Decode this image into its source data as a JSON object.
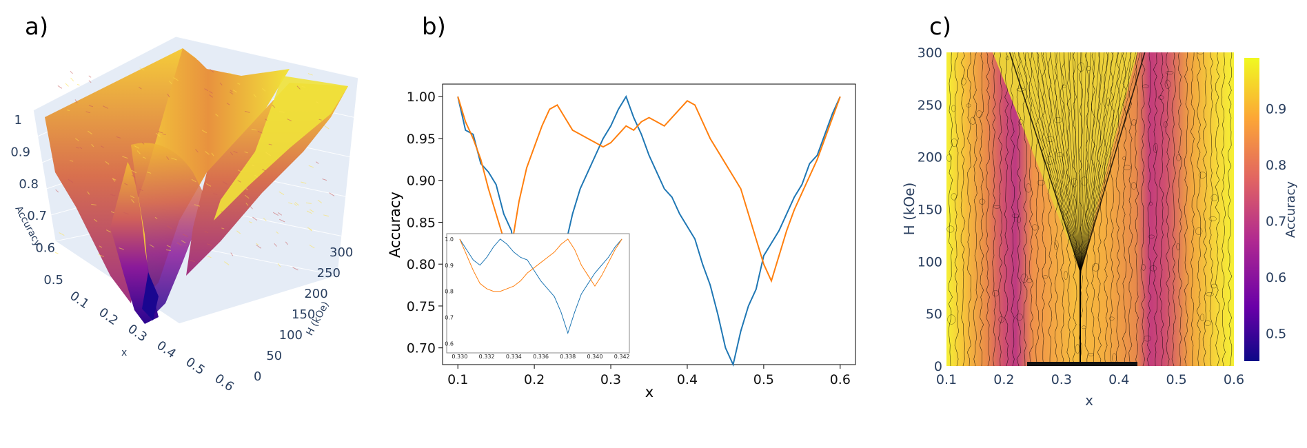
{
  "panels": {
    "a": "a)",
    "b": "b)",
    "c": "c)"
  },
  "chart_data": [
    {
      "panel": "a)",
      "type": "surface",
      "xlabel": "x",
      "ylabel": "H (kOe)",
      "zlabel": "Accuracy",
      "x_ticks": [
        "0.1",
        "0.2",
        "0.3",
        "0.4",
        "0.5",
        "0.6"
      ],
      "y_ticks": [
        "0",
        "50",
        "100",
        "150",
        "200",
        "250",
        "300"
      ],
      "z_ticks": [
        "0.5",
        "0.6",
        "0.7",
        "0.8",
        "0.9",
        "1"
      ],
      "xlim": [
        0.1,
        0.6
      ],
      "ylim": [
        0,
        300
      ],
      "zlim": [
        0.45,
        1.0
      ],
      "colorscale": [
        "#0d0887",
        "#7e03a8",
        "#cc4778",
        "#f89540",
        "#f0f921"
      ],
      "minimum": {
        "x": 0.33,
        "H": 0,
        "accuracy": 0.46
      }
    },
    {
      "panel": "b)",
      "type": "line",
      "xlabel": "x",
      "ylabel": "Accuracy",
      "xlim": [
        0.08,
        0.62
      ],
      "ylim": [
        0.68,
        1.015
      ],
      "x_ticks": [
        "0.1",
        "0.2",
        "0.3",
        "0.4",
        "0.5",
        "0.6"
      ],
      "y_ticks": [
        "0.70",
        "0.75",
        "0.80",
        "0.85",
        "0.90",
        "0.95",
        "1.00"
      ],
      "grid": false,
      "series": [
        {
          "color": "#1f77b4",
          "x": [
            0.1,
            0.11,
            0.12,
            0.13,
            0.14,
            0.15,
            0.16,
            0.17,
            0.18,
            0.19,
            0.2,
            0.21,
            0.22,
            0.23,
            0.24,
            0.25,
            0.26,
            0.27,
            0.28,
            0.29,
            0.3,
            0.31,
            0.32,
            0.33,
            0.34,
            0.35,
            0.36,
            0.37,
            0.38,
            0.39,
            0.4,
            0.41,
            0.42,
            0.43,
            0.44,
            0.45,
            0.46,
            0.47,
            0.48,
            0.49,
            0.5,
            0.51,
            0.52,
            0.53,
            0.54,
            0.55,
            0.56,
            0.57,
            0.58,
            0.59,
            0.6
          ],
          "y": [
            1.0,
            0.96,
            0.955,
            0.92,
            0.91,
            0.895,
            0.86,
            0.84,
            0.78,
            0.74,
            0.72,
            0.74,
            0.76,
            0.79,
            0.82,
            0.86,
            0.89,
            0.91,
            0.93,
            0.95,
            0.965,
            0.985,
            1.0,
            0.975,
            0.955,
            0.93,
            0.91,
            0.89,
            0.88,
            0.86,
            0.845,
            0.83,
            0.8,
            0.775,
            0.74,
            0.7,
            0.68,
            0.72,
            0.75,
            0.77,
            0.81,
            0.825,
            0.84,
            0.86,
            0.88,
            0.895,
            0.92,
            0.93,
            0.955,
            0.98,
            1.0
          ]
        },
        {
          "color": "#ff7f0e",
          "x": [
            0.1,
            0.11,
            0.12,
            0.13,
            0.14,
            0.15,
            0.16,
            0.17,
            0.18,
            0.19,
            0.2,
            0.21,
            0.22,
            0.23,
            0.24,
            0.25,
            0.26,
            0.27,
            0.28,
            0.29,
            0.3,
            0.31,
            0.32,
            0.33,
            0.34,
            0.35,
            0.36,
            0.37,
            0.38,
            0.39,
            0.4,
            0.41,
            0.42,
            0.43,
            0.44,
            0.45,
            0.46,
            0.47,
            0.48,
            0.49,
            0.5,
            0.51,
            0.52,
            0.53,
            0.54,
            0.55,
            0.56,
            0.57,
            0.58,
            0.59,
            0.6
          ],
          "y": [
            1.0,
            0.97,
            0.95,
            0.925,
            0.89,
            0.86,
            0.83,
            0.82,
            0.875,
            0.915,
            0.94,
            0.965,
            0.985,
            0.99,
            0.975,
            0.96,
            0.955,
            0.95,
            0.945,
            0.94,
            0.945,
            0.955,
            0.965,
            0.96,
            0.97,
            0.975,
            0.97,
            0.965,
            0.975,
            0.985,
            0.995,
            0.99,
            0.97,
            0.95,
            0.935,
            0.92,
            0.905,
            0.89,
            0.86,
            0.83,
            0.8,
            0.78,
            0.81,
            0.84,
            0.865,
            0.885,
            0.905,
            0.925,
            0.95,
            0.975,
            1.0
          ]
        }
      ],
      "inset": {
        "xlim": [
          0.3297,
          0.3425
        ],
        "ylim": [
          0.57,
          1.01
        ],
        "x_ticks": [
          "0.330",
          "0.332",
          "0.334",
          "0.336",
          "0.338",
          "0.340",
          "0.342"
        ],
        "y_ticks": [
          "0.6",
          "0.7",
          "0.8",
          "0.9",
          "1.0"
        ],
        "series": [
          {
            "color": "#1f77b4",
            "x": [
              0.33,
              0.3305,
              0.331,
              0.3315,
              0.332,
              0.3325,
              0.333,
              0.3335,
              0.334,
              0.3345,
              0.335,
              0.3355,
              0.336,
              0.3365,
              0.337,
              0.3375,
              0.338,
              0.3385,
              0.339,
              0.3395,
              0.34,
              0.3405,
              0.341,
              0.3415,
              0.342
            ],
            "y": [
              1.0,
              0.96,
              0.92,
              0.9,
              0.93,
              0.97,
              1.0,
              0.98,
              0.95,
              0.93,
              0.92,
              0.88,
              0.84,
              0.81,
              0.78,
              0.72,
              0.64,
              0.72,
              0.79,
              0.83,
              0.87,
              0.9,
              0.93,
              0.97,
              1.0
            ]
          },
          {
            "color": "#ff7f0e",
            "x": [
              0.33,
              0.3305,
              0.331,
              0.3315,
              0.332,
              0.3325,
              0.333,
              0.3335,
              0.334,
              0.3345,
              0.335,
              0.3355,
              0.336,
              0.3365,
              0.337,
              0.3375,
              0.338,
              0.3385,
              0.339,
              0.3395,
              0.34,
              0.3405,
              0.341,
              0.3415,
              0.342
            ],
            "y": [
              1.0,
              0.94,
              0.88,
              0.83,
              0.81,
              0.8,
              0.8,
              0.81,
              0.82,
              0.84,
              0.87,
              0.89,
              0.91,
              0.93,
              0.95,
              0.98,
              1.0,
              0.96,
              0.9,
              0.86,
              0.82,
              0.86,
              0.91,
              0.96,
              1.0
            ]
          }
        ]
      }
    },
    {
      "panel": "c)",
      "type": "contour",
      "xlabel": "x",
      "ylabel": "H (kOe)",
      "colorbar_label": "Accuracy",
      "xlim": [
        0.1,
        0.6
      ],
      "ylim": [
        0,
        300
      ],
      "x_ticks": [
        "0.1",
        "0.2",
        "0.3",
        "0.4",
        "0.5",
        "0.6"
      ],
      "y_ticks": [
        "0",
        "50",
        "100",
        "150",
        "200",
        "250",
        "300"
      ],
      "colorbar_ticks": [
        "0.5",
        "0.6",
        "0.7",
        "0.8",
        "0.9"
      ],
      "colorbar_range": [
        0.45,
        0.99
      ],
      "colorscale": [
        "#0d0887",
        "#7e03a8",
        "#cc4778",
        "#f89540",
        "#f0f921"
      ],
      "vertex": {
        "x": 0.333,
        "H": 90
      },
      "cone_top": {
        "x_left": 0.21,
        "x_right": 0.445,
        "H": 300
      }
    }
  ]
}
